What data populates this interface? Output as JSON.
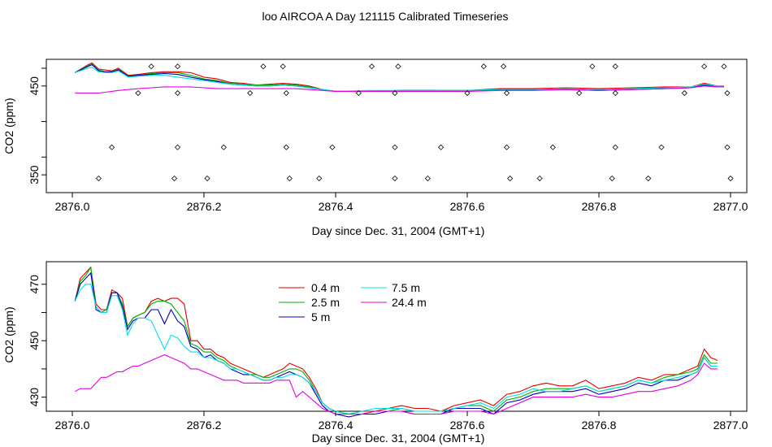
{
  "figure": {
    "title": "loo AIRCOA A  Day 121115  Calibrated Timeseries"
  },
  "chart_data": [
    {
      "type": "line",
      "xlabel": "Day since Dec. 31, 2004 (GMT+1)",
      "ylabel": "CO2 (ppm)",
      "xlim": [
        2876.0,
        2877.0
      ],
      "ylim": [
        330,
        480
      ],
      "xticks": [
        2876.0,
        2876.2,
        2876.4,
        2876.6,
        2876.8,
        2877.0
      ],
      "xtick_labels": [
        "2876.0",
        "2876.2",
        "2876.4",
        "2876.6",
        "2876.8",
        "2877.0"
      ],
      "yticks": [
        350,
        450
      ],
      "ytick_labels": [
        "350",
        "450"
      ],
      "grid": false,
      "x": [
        2876.004,
        2876.024,
        2876.03,
        2876.04,
        2876.05,
        2876.06,
        2876.07,
        2876.085,
        2876.1,
        2876.12,
        2876.14,
        2876.16,
        2876.18,
        2876.2,
        2876.22,
        2876.24,
        2876.26,
        2876.28,
        2876.3,
        2876.32,
        2876.34,
        2876.36,
        2876.38,
        2876.4,
        2876.45,
        2876.5,
        2876.55,
        2876.6,
        2876.65,
        2876.7,
        2876.75,
        2876.8,
        2876.85,
        2876.9,
        2876.94,
        2876.96,
        2876.98,
        2876.99
      ],
      "series": [
        {
          "color": "#e00000",
          "values": [
            465,
            474,
            476,
            469,
            468,
            467,
            470,
            462,
            463,
            465,
            466,
            466,
            465,
            460,
            458,
            454,
            453,
            451,
            452,
            453,
            452,
            450,
            446,
            444,
            444,
            445,
            445,
            445,
            447,
            447,
            448,
            447,
            448,
            449,
            449,
            453,
            450,
            450
          ]
        },
        {
          "color": "#00b000",
          "values": [
            465,
            473,
            475,
            468,
            466,
            466,
            469,
            461,
            462,
            464,
            465,
            465,
            462,
            458,
            456,
            453,
            452,
            451,
            451,
            452,
            451,
            449,
            446,
            444,
            444,
            445,
            445,
            445,
            446,
            446,
            447,
            446,
            447,
            448,
            449,
            452,
            450,
            450
          ]
        },
        {
          "color": "#0000c0",
          "values": [
            465,
            472,
            474,
            467,
            466,
            466,
            468,
            461,
            462,
            463,
            464,
            463,
            460,
            457,
            455,
            452,
            451,
            450,
            450,
            451,
            450,
            448,
            446,
            444,
            444,
            445,
            445,
            444,
            446,
            446,
            446,
            445,
            446,
            447,
            448,
            451,
            449,
            449
          ]
        },
        {
          "color": "#00e0e0",
          "values": [
            465,
            470,
            471,
            466,
            465,
            465,
            467,
            460,
            461,
            462,
            462,
            460,
            458,
            456,
            454,
            452,
            451,
            450,
            450,
            451,
            450,
            448,
            446,
            444,
            445,
            445,
            445,
            445,
            446,
            446,
            447,
            446,
            447,
            448,
            449,
            452,
            450,
            450
          ]
        },
        {
          "color": "#e000e0",
          "values": [
            442,
            442,
            442,
            442,
            443,
            444,
            445,
            446,
            447,
            448,
            449,
            449,
            449,
            448,
            447,
            447,
            447,
            447,
            447,
            447,
            447,
            446,
            445,
            444,
            444,
            444,
            444,
            444,
            445,
            445,
            446,
            445,
            446,
            447,
            448,
            450,
            449,
            449
          ]
        }
      ],
      "flags": [
        {
          "x": 2876.12,
          "y": 472
        },
        {
          "x": 2876.16,
          "y": 472
        },
        {
          "x": 2876.29,
          "y": 472
        },
        {
          "x": 2876.32,
          "y": 472
        },
        {
          "x": 2876.455,
          "y": 472
        },
        {
          "x": 2876.495,
          "y": 472
        },
        {
          "x": 2876.625,
          "y": 472
        },
        {
          "x": 2876.655,
          "y": 472
        },
        {
          "x": 2876.79,
          "y": 472
        },
        {
          "x": 2876.825,
          "y": 472
        },
        {
          "x": 2876.96,
          "y": 472
        },
        {
          "x": 2876.99,
          "y": 472
        },
        {
          "x": 2876.1,
          "y": 442
        },
        {
          "x": 2876.16,
          "y": 442
        },
        {
          "x": 2876.27,
          "y": 442
        },
        {
          "x": 2876.325,
          "y": 442
        },
        {
          "x": 2876.435,
          "y": 442
        },
        {
          "x": 2876.49,
          "y": 442
        },
        {
          "x": 2876.6,
          "y": 442
        },
        {
          "x": 2876.66,
          "y": 442
        },
        {
          "x": 2876.77,
          "y": 442
        },
        {
          "x": 2876.825,
          "y": 442
        },
        {
          "x": 2876.93,
          "y": 442
        },
        {
          "x": 2876.995,
          "y": 442
        },
        {
          "x": 2876.06,
          "y": 381
        },
        {
          "x": 2876.16,
          "y": 381
        },
        {
          "x": 2876.23,
          "y": 381
        },
        {
          "x": 2876.325,
          "y": 381
        },
        {
          "x": 2876.395,
          "y": 381
        },
        {
          "x": 2876.49,
          "y": 381
        },
        {
          "x": 2876.56,
          "y": 381
        },
        {
          "x": 2876.66,
          "y": 381
        },
        {
          "x": 2876.73,
          "y": 381
        },
        {
          "x": 2876.825,
          "y": 381
        },
        {
          "x": 2876.895,
          "y": 381
        },
        {
          "x": 2876.995,
          "y": 381
        },
        {
          "x": 2876.04,
          "y": 346
        },
        {
          "x": 2876.155,
          "y": 346
        },
        {
          "x": 2876.205,
          "y": 346
        },
        {
          "x": 2876.33,
          "y": 346
        },
        {
          "x": 2876.375,
          "y": 346
        },
        {
          "x": 2876.49,
          "y": 346
        },
        {
          "x": 2876.54,
          "y": 346
        },
        {
          "x": 2876.665,
          "y": 346
        },
        {
          "x": 2876.71,
          "y": 346
        },
        {
          "x": 2876.82,
          "y": 346
        },
        {
          "x": 2876.875,
          "y": 346
        },
        {
          "x": 2877.0,
          "y": 346
        }
      ]
    },
    {
      "type": "line",
      "xlabel": "Day since Dec. 31, 2004 (GMT+1)",
      "ylabel": "CO2 (ppm)",
      "xlim": [
        2876.0,
        2877.0
      ],
      "ylim": [
        425,
        478
      ],
      "xticks": [
        2876.0,
        2876.2,
        2876.4,
        2876.6,
        2876.8,
        2877.0
      ],
      "xtick_labels": [
        "2876.0",
        "2876.2",
        "2876.4",
        "2876.6",
        "2876.8",
        "2877.0"
      ],
      "yticks": [
        430,
        450,
        470
      ],
      "ytick_labels": [
        "430",
        "450",
        "470"
      ],
      "grid": false,
      "legend_position": "top-center",
      "x": [
        2876.004,
        2876.012,
        2876.02,
        2876.028,
        2876.036,
        2876.044,
        2876.052,
        2876.06,
        2876.068,
        2876.076,
        2876.084,
        2876.092,
        2876.1,
        2876.11,
        2876.12,
        2876.13,
        2876.14,
        2876.15,
        2876.16,
        2876.17,
        2876.18,
        2876.19,
        2876.2,
        2876.21,
        2876.22,
        2876.23,
        2876.24,
        2876.25,
        2876.26,
        2876.27,
        2876.28,
        2876.29,
        2876.3,
        2876.31,
        2876.32,
        2876.33,
        2876.34,
        2876.35,
        2876.36,
        2876.37,
        2876.38,
        2876.39,
        2876.4,
        2876.42,
        2876.44,
        2876.46,
        2876.48,
        2876.5,
        2876.52,
        2876.54,
        2876.56,
        2876.58,
        2876.6,
        2876.62,
        2876.64,
        2876.66,
        2876.68,
        2876.7,
        2876.72,
        2876.74,
        2876.76,
        2876.78,
        2876.8,
        2876.82,
        2876.84,
        2876.86,
        2876.88,
        2876.9,
        2876.92,
        2876.94,
        2876.95,
        2876.96,
        2876.97,
        2876.98
      ],
      "series": [
        {
          "name": "0.4 m",
          "color": "#e00000",
          "values": [
            464,
            472,
            474,
            476,
            463,
            461,
            461,
            468,
            467,
            465,
            455,
            458,
            459,
            460,
            464,
            465,
            464,
            465,
            465,
            463,
            450,
            450,
            447,
            447,
            445,
            444,
            442,
            441,
            440,
            439,
            438,
            437,
            438,
            439,
            440,
            442,
            441,
            440,
            437,
            433,
            428,
            426,
            425,
            424,
            425,
            425,
            426,
            427,
            426,
            426,
            425,
            427,
            428,
            429,
            427,
            431,
            432,
            434,
            435,
            434,
            434,
            436,
            433,
            434,
            435,
            437,
            436,
            438,
            438,
            440,
            441,
            447,
            444,
            443
          ]
        },
        {
          "name": "2.5 m",
          "color": "#00b000",
          "values": [
            464,
            471,
            473,
            476,
            462,
            460,
            461,
            467,
            467,
            463,
            455,
            458,
            459,
            460,
            463,
            464,
            464,
            463,
            460,
            457,
            449,
            448,
            446,
            446,
            444,
            443,
            441,
            440,
            439,
            438,
            438,
            437,
            437,
            438,
            439,
            440,
            440,
            439,
            436,
            432,
            428,
            426,
            425,
            424,
            424,
            425,
            425,
            426,
            425,
            425,
            425,
            426,
            427,
            427,
            425,
            429,
            430,
            432,
            433,
            433,
            433,
            434,
            432,
            433,
            434,
            436,
            435,
            437,
            438,
            439,
            440,
            445,
            442,
            442
          ]
        },
        {
          "name": "5 m",
          "color": "#0000c0",
          "values": [
            464,
            470,
            472,
            474,
            461,
            460,
            460,
            467,
            467,
            462,
            454,
            457,
            458,
            458,
            461,
            461,
            456,
            461,
            457,
            455,
            448,
            447,
            444,
            445,
            443,
            442,
            440,
            439,
            438,
            438,
            437,
            436,
            436,
            437,
            438,
            439,
            438,
            437,
            435,
            431,
            427,
            425,
            424,
            423,
            424,
            424,
            425,
            425,
            424,
            424,
            424,
            426,
            426,
            426,
            424,
            428,
            429,
            431,
            432,
            432,
            432,
            433,
            431,
            432,
            433,
            435,
            434,
            436,
            436,
            438,
            439,
            444,
            441,
            441
          ]
        },
        {
          "name": "7.5 m",
          "color": "#00e0e0",
          "values": [
            464,
            468,
            470,
            470,
            462,
            460,
            460,
            466,
            466,
            461,
            452,
            456,
            458,
            458,
            457,
            452,
            447,
            452,
            451,
            448,
            446,
            446,
            444,
            444,
            443,
            442,
            440,
            440,
            439,
            438,
            437,
            436,
            436,
            437,
            437,
            438,
            438,
            437,
            435,
            432,
            428,
            426,
            425,
            424,
            425,
            426,
            426,
            426,
            425,
            425,
            425,
            426,
            427,
            428,
            426,
            430,
            431,
            433,
            432,
            432,
            433,
            434,
            432,
            433,
            434,
            436,
            435,
            436,
            437,
            438,
            439,
            444,
            441,
            441
          ]
        },
        {
          "name": "24.4 m",
          "color": "#e000e0",
          "values": [
            432,
            433,
            433,
            433,
            435,
            437,
            437,
            438,
            439,
            439,
            440,
            441,
            441,
            442,
            443,
            444,
            445,
            444,
            443,
            442,
            440,
            440,
            439,
            438,
            437,
            436,
            436,
            436,
            435,
            435,
            435,
            435,
            435,
            436,
            436,
            436,
            430,
            432,
            430,
            428,
            426,
            425,
            424,
            424,
            424,
            425,
            425,
            425,
            424,
            424,
            424,
            425,
            425,
            425,
            424,
            426,
            428,
            430,
            430,
            430,
            430,
            431,
            430,
            430,
            431,
            432,
            432,
            433,
            434,
            436,
            438,
            442,
            440,
            440
          ]
        }
      ]
    }
  ]
}
